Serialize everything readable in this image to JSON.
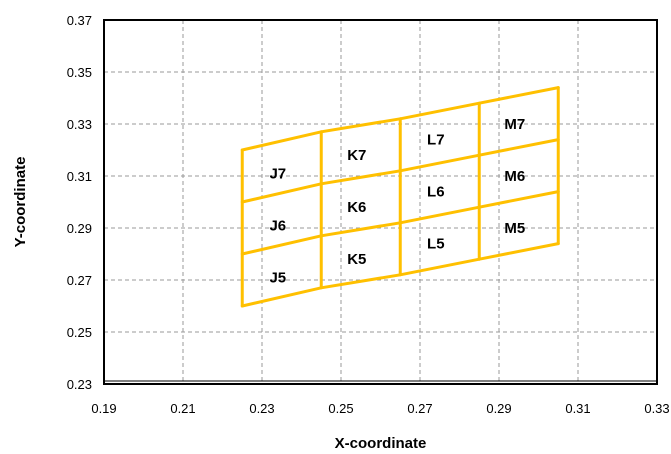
{
  "chart_data": {
    "type": "line",
    "xlabel": "X-coordinate",
    "ylabel": "Y-coordinate",
    "xlim": [
      0.19,
      0.33
    ],
    "ylim": [
      0.23,
      0.37
    ],
    "xticks": [
      "0.19",
      "0.21",
      "0.23",
      "0.25",
      "0.27",
      "0.29",
      "0.31",
      "0.33"
    ],
    "yticks": [
      "0.37",
      "0.35",
      "0.33",
      "0.31",
      "0.29",
      "0.27",
      "0.25",
      "0.23"
    ],
    "grid": true,
    "mesh_color": "#FFC000",
    "mesh": {
      "x_columns": [
        0.225,
        0.245,
        0.265,
        0.285,
        0.305
      ],
      "bottom_y": [
        0.26,
        0.267,
        0.272,
        0.278,
        0.284
      ],
      "row_height": 0.02,
      "rows": 3
    },
    "cells": [
      {
        "label": "J5",
        "x": 0.234,
        "y": 0.271
      },
      {
        "label": "J6",
        "x": 0.234,
        "y": 0.291
      },
      {
        "label": "J7",
        "x": 0.234,
        "y": 0.311
      },
      {
        "label": "K5",
        "x": 0.254,
        "y": 0.278
      },
      {
        "label": "K6",
        "x": 0.254,
        "y": 0.298
      },
      {
        "label": "K7",
        "x": 0.254,
        "y": 0.318
      },
      {
        "label": "L5",
        "x": 0.274,
        "y": 0.284
      },
      {
        "label": "L6",
        "x": 0.274,
        "y": 0.304
      },
      {
        "label": "L7",
        "x": 0.274,
        "y": 0.324
      },
      {
        "label": "M5",
        "x": 0.294,
        "y": 0.29
      },
      {
        "label": "M6",
        "x": 0.294,
        "y": 0.31
      },
      {
        "label": "M7",
        "x": 0.294,
        "y": 0.33
      }
    ]
  }
}
